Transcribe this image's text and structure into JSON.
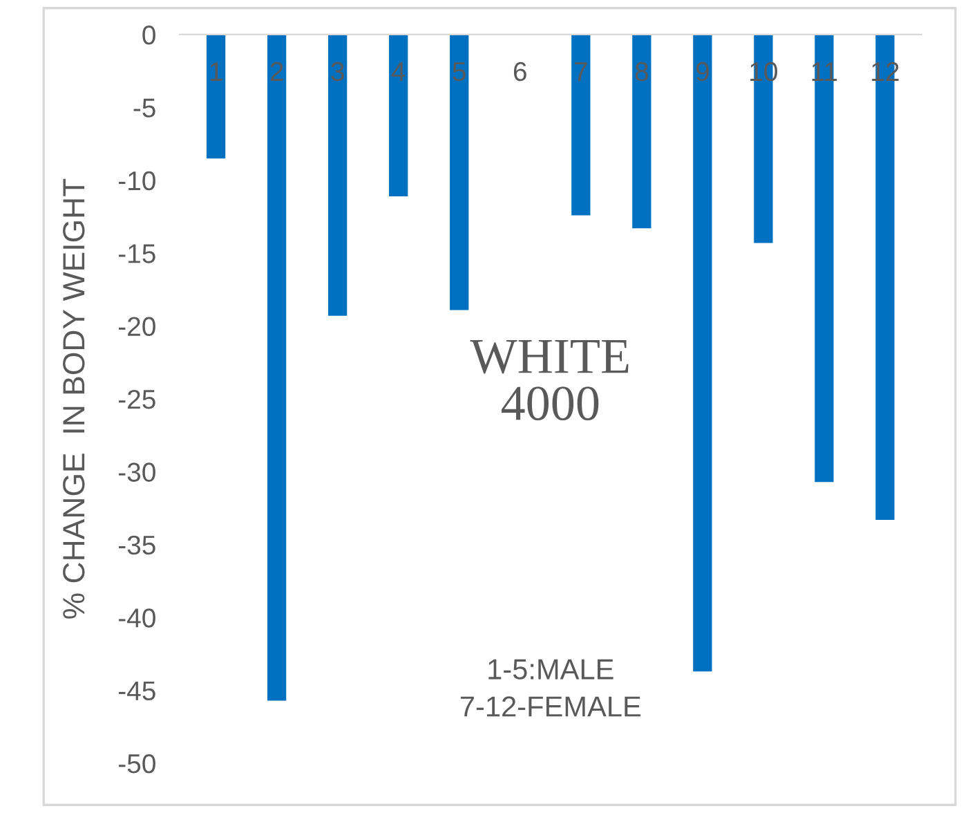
{
  "chart_data": {
    "type": "bar",
    "ylabel": "% CHANGE  IN BODY WEIGHT",
    "categories": [
      "1",
      "2",
      "3",
      "4",
      "5",
      "6",
      "7",
      "8",
      "9",
      "10",
      "11",
      "12"
    ],
    "values": [
      -8.5,
      -45.7,
      -19.3,
      -11.1,
      -18.9,
      null,
      -12.4,
      -13.3,
      -43.7,
      -14.3,
      -30.7,
      -33.3
    ],
    "color": "#0070c0",
    "ylim": [
      -50,
      0
    ],
    "yticks": [
      -50,
      -45,
      -40,
      -35,
      -30,
      -25,
      -20,
      -15,
      -10,
      -5,
      0
    ],
    "grid": false,
    "annotations": [
      "WHITE\n4000",
      "1-5:MALE\n7-12-FEMALE"
    ]
  }
}
